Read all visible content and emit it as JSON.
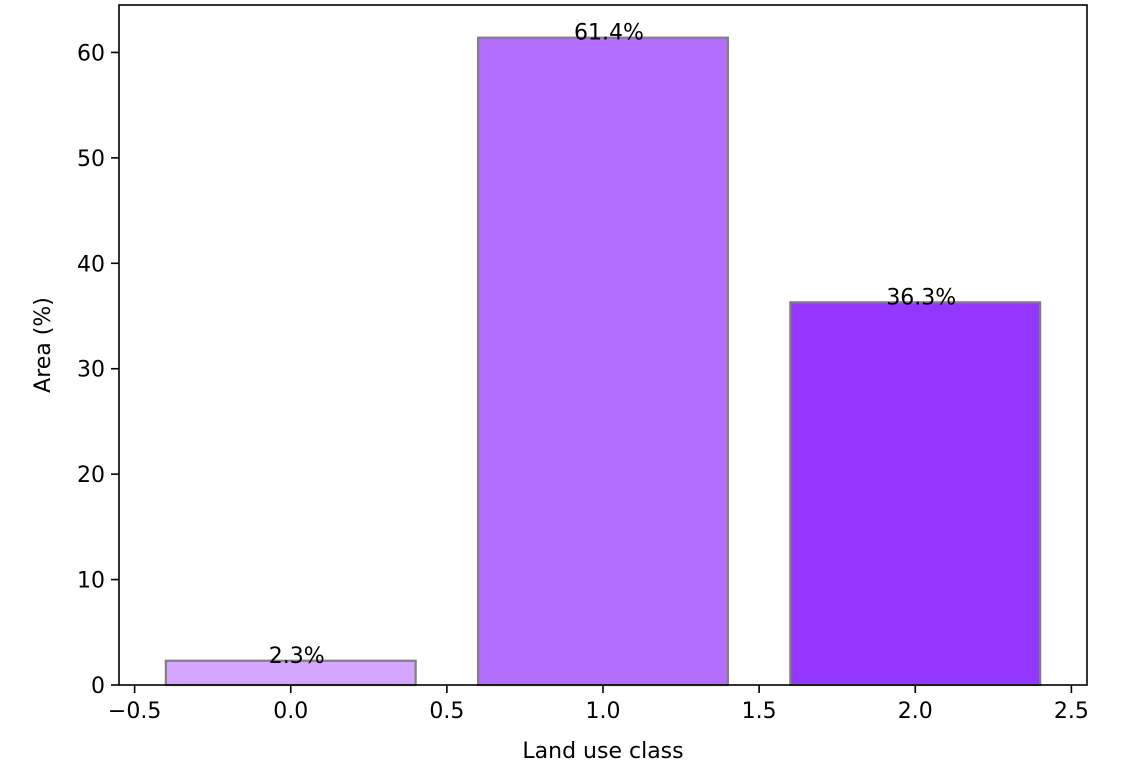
{
  "chart_data": {
    "type": "bar",
    "title": "",
    "xlabel": "Land use class",
    "ylabel": "Area (%)",
    "x": [
      0,
      1,
      2
    ],
    "values": [
      2.3,
      61.4,
      36.3
    ],
    "data_labels": [
      "2.3%",
      "61.4%",
      "36.3%"
    ],
    "colors": [
      "#d4a6ff",
      "#b36eff",
      "#9436ff"
    ],
    "edge_color": "#808080",
    "bar_width": 0.8,
    "xlim": [
      -0.55,
      2.55
    ],
    "ylim": [
      0,
      64.5
    ],
    "x_ticks": [
      -0.5,
      0.0,
      0.5,
      1.0,
      1.5,
      2.0,
      2.5
    ],
    "x_tick_labels": [
      "−0.5",
      "0.0",
      "0.5",
      "1.0",
      "1.5",
      "2.0",
      "2.5"
    ],
    "y_ticks": [
      0,
      10,
      20,
      30,
      40,
      50,
      60
    ],
    "y_tick_labels": [
      "0",
      "10",
      "20",
      "30",
      "40",
      "50",
      "60"
    ],
    "grid": false,
    "legend": false
  }
}
